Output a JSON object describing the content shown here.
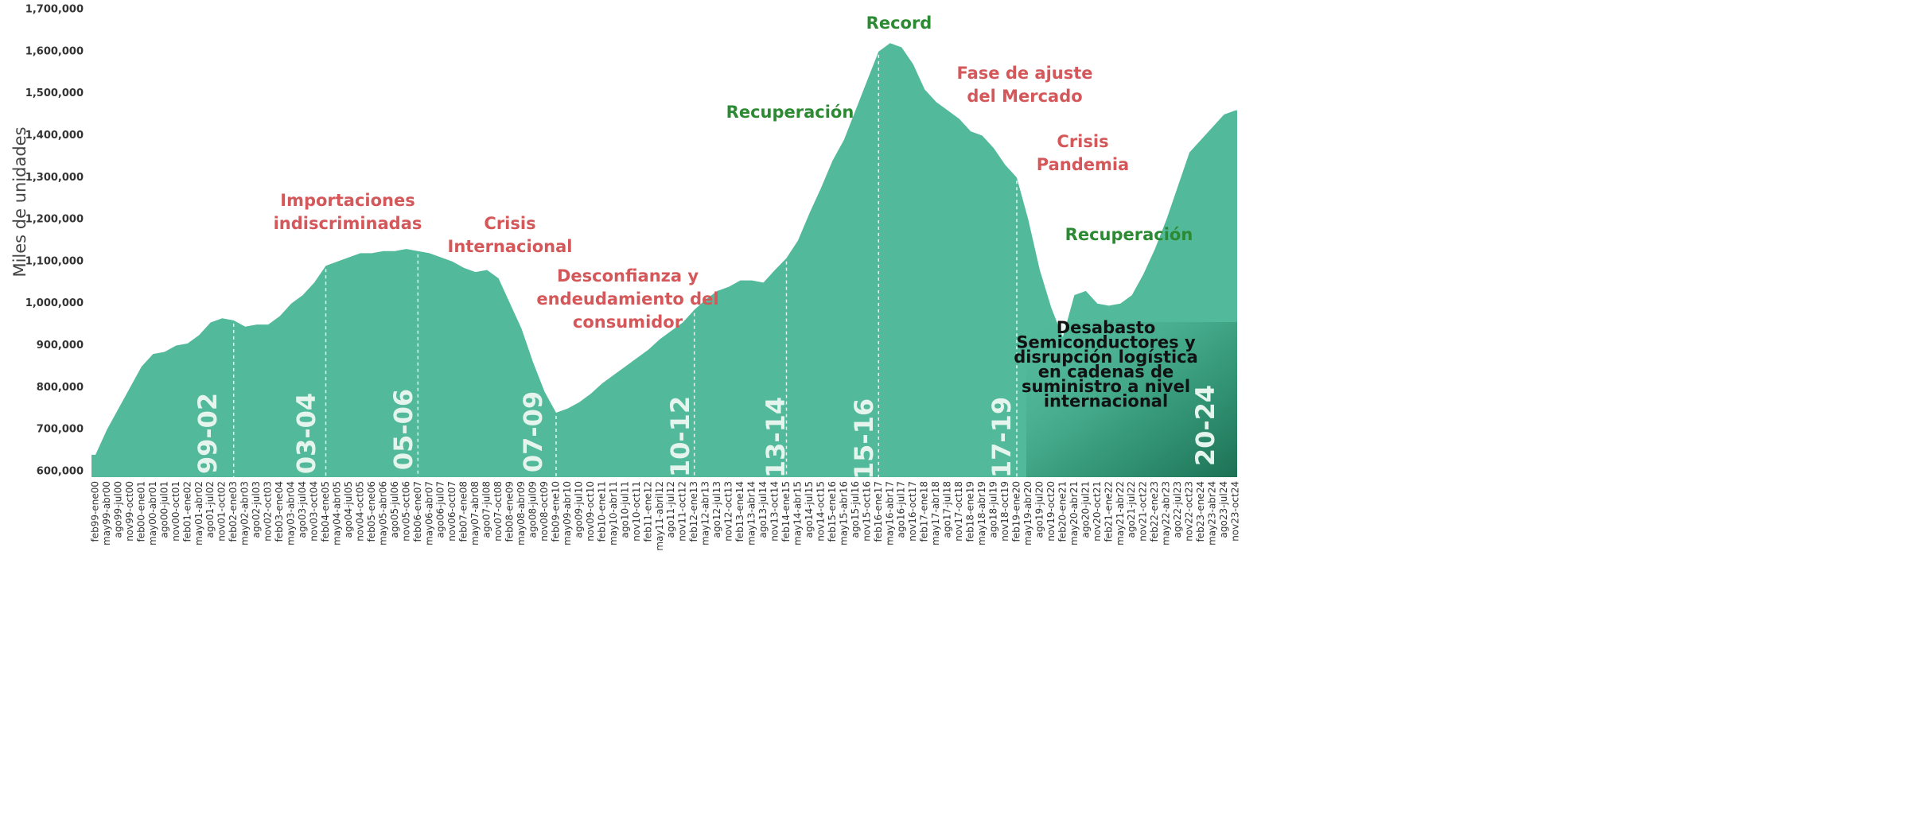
{
  "chart_data": {
    "type": "area",
    "y_label": "Miles de unidades",
    "color": "#52b99a",
    "ylim": [
      600000,
      1700000
    ],
    "yticks": [
      {
        "value": 600000,
        "label": "600,000"
      },
      {
        "value": 700000,
        "label": "700,000"
      },
      {
        "value": 800000,
        "label": "800,000"
      },
      {
        "value": 900000,
        "label": "900,000"
      },
      {
        "value": 1000000,
        "label": "1,000,000"
      },
      {
        "value": 1100000,
        "label": "1,100,000"
      },
      {
        "value": 1200000,
        "label": "1,200,000"
      },
      {
        "value": 1300000,
        "label": "1,300,000"
      },
      {
        "value": 1400000,
        "label": "1,400,000"
      },
      {
        "value": 1500000,
        "label": "1,500,000"
      },
      {
        "value": 1600000,
        "label": "1,600,000"
      },
      {
        "value": 1700000,
        "label": "1,700,000"
      }
    ],
    "categories": [
      "feb99-ene00",
      "may99-abr00",
      "ago99-jul00",
      "nov99-oct00",
      "feb00-ene01",
      "may00-abr01",
      "ago00-jul01",
      "nov00-oct01",
      "feb01-ene02",
      "may01-abr02",
      "ago01-jul02",
      "nov01-oct02",
      "feb02-ene03",
      "may02-abr03",
      "ago02-jul03",
      "nov02-oct03",
      "feb03-ene04",
      "may03-abr04",
      "ago03-jul04",
      "nov03-oct04",
      "feb04-ene05",
      "may04-abr05",
      "ago04-jul05",
      "nov04-oct05",
      "feb05-ene06",
      "may05-abr06",
      "ago05-jul06",
      "nov05-oct06",
      "feb06-ene07",
      "may06-abr07",
      "ago06-jul07",
      "nov06-oct07",
      "feb07-ene08",
      "may07-abr08",
      "ago07-jul08",
      "nov07-oct08",
      "feb08-ene09",
      "may08-abr09",
      "ago08-jul09",
      "nov08-oct09",
      "feb09-ene10",
      "may09-abr10",
      "ago09-jul10",
      "nov09-oct10",
      "feb10-ene11",
      "may10-abr11",
      "ago10-jul11",
      "nov10-oct11",
      "feb11-ene12",
      "may11-abril12",
      "ago11-jul12",
      "nov11-oct12",
      "feb12-ene13",
      "may12-abr13",
      "ago12-jul13",
      "nov12-oct13",
      "feb13-ene14",
      "may13-abr14",
      "ago13-jul14",
      "nov13-oct14",
      "feb14-ene15",
      "may14-abr15",
      "ago14-jul15",
      "nov14-oct15",
      "feb15-ene16",
      "may15-abr16",
      "ago15-jul16",
      "nov15-oct16",
      "feb16-ene17",
      "may16-abr17",
      "ago16-jul17",
      "nov16-oct17",
      "feb17-ene18",
      "may17-abr18",
      "ago17-jul18",
      "nov17-oct18",
      "feb18-ene19",
      "may18-abr19",
      "ago18-jul19",
      "nov18-oct19",
      "feb19-ene20",
      "may19-abr20",
      "ago19-jul20",
      "nov19-oct20",
      "feb20-ene21",
      "may20-abr21",
      "ago20-jul21",
      "nov20-oct21",
      "feb21-ene22",
      "may21-abr22",
      "ago21-jul22",
      "nov21-oct22",
      "feb22-ene23",
      "may22-abr23",
      "ago22-jul23",
      "nov22-oct23",
      "feb23-ene24",
      "may23-abr24",
      "ago23-jul24",
      "nov23-oct24"
    ],
    "values": [
      640000,
      700000,
      750000,
      800000,
      850000,
      880000,
      885000,
      900000,
      905000,
      925000,
      955000,
      965000,
      960000,
      945000,
      950000,
      950000,
      970000,
      1000000,
      1020000,
      1050000,
      1090000,
      1100000,
      1110000,
      1120000,
      1120000,
      1125000,
      1125000,
      1130000,
      1125000,
      1120000,
      1110000,
      1100000,
      1085000,
      1075000,
      1080000,
      1060000,
      1000000,
      940000,
      860000,
      790000,
      740000,
      750000,
      765000,
      785000,
      810000,
      830000,
      850000,
      870000,
      890000,
      915000,
      935000,
      955000,
      985000,
      1010000,
      1030000,
      1040000,
      1055000,
      1055000,
      1050000,
      1080000,
      1108000,
      1150000,
      1215000,
      1275000,
      1340000,
      1390000,
      1460000,
      1530000,
      1600000,
      1620000,
      1610000,
      1570000,
      1510000,
      1480000,
      1460000,
      1440000,
      1410000,
      1400000,
      1370000,
      1330000,
      1300000,
      1200000,
      1080000,
      990000,
      920000,
      1020000,
      1030000,
      1000000,
      995000,
      1000000,
      1020000,
      1070000,
      1130000,
      1200000,
      1280000,
      1360000,
      1390000,
      1420000,
      1450000,
      1460000
    ],
    "periods": [
      "99-02",
      "03-04",
      "05-06",
      "07-09",
      "10-12",
      "13-14",
      "15-16",
      "17-19",
      "20-24"
    ],
    "annotations": [
      {
        "lines": [
          "Importaciones",
          "indiscriminadas"
        ],
        "color": "#d4575a"
      },
      {
        "lines": [
          "Crisis",
          "Internacional"
        ],
        "color": "#d4575a"
      },
      {
        "lines": [
          "Desconfianza y",
          "endeudamiento del",
          "consumidor"
        ],
        "color": "#d4575a"
      },
      {
        "lines": [
          "Recuperación"
        ],
        "color": "#2c8a33"
      },
      {
        "lines": [
          "Record"
        ],
        "color": "#2c8a33"
      },
      {
        "lines": [
          "Fase de ajuste",
          "del Mercado"
        ],
        "color": "#d4575a"
      },
      {
        "lines": [
          "Crisis",
          "Pandemia"
        ],
        "color": "#d4575a"
      },
      {
        "lines": [
          "Recuperación"
        ],
        "color": "#2c8a33"
      },
      {
        "lines": [
          "Desabasto",
          "Semiconductores y",
          "disrupción logística",
          "en cadenas de",
          "suministro a nivel",
          "internacional"
        ],
        "color": "#111111"
      }
    ]
  }
}
